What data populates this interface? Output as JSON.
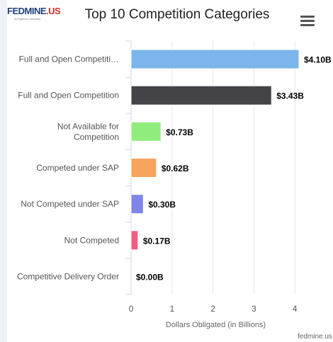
{
  "logo": {
    "text_main": "FEDMINE",
    "text_suffix": ".US",
    "tagline": "A Gryphon Company"
  },
  "header": {
    "menu_icon": "hamburger-menu-icon"
  },
  "footer": {
    "credit": "fedmine.us"
  },
  "chart_data": {
    "type": "bar",
    "orientation": "horizontal",
    "title": "Top 10 Competition Categories",
    "xlabel": "Dollars Obligated (in Billions)",
    "ylabel": "",
    "xlim": [
      0,
      5
    ],
    "x_ticks": [
      "0",
      "1",
      "2",
      "3",
      "4",
      "5"
    ],
    "grid": true,
    "categories": [
      "Full and Open Competiti…",
      "Full and Open Competition",
      "Not Available for Competition",
      "Competed under SAP",
      "Not Competed under SAP",
      "Not Competed",
      "Competitive Delivery Order"
    ],
    "category_lines": [
      [
        "Full and Open Competiti…"
      ],
      [
        "Full and Open Competition"
      ],
      [
        "Not Available for",
        "Competition"
      ],
      [
        "Competed under SAP"
      ],
      [
        "Not Competed under SAP"
      ],
      [
        "Not Competed"
      ],
      [
        "Competitive Delivery Order"
      ]
    ],
    "values": [
      4.1,
      3.43,
      0.73,
      0.62,
      0.3,
      0.17,
      0.0
    ],
    "labels": [
      "$4.10B",
      "$3.43B",
      "$0.73B",
      "$0.62B",
      "$0.30B",
      "$0.17B",
      "$0.00B"
    ],
    "colors": [
      "#7cb5ec",
      "#434348",
      "#90ed7d",
      "#f7a35c",
      "#8085e9",
      "#f15c80",
      "#e4d354"
    ]
  }
}
